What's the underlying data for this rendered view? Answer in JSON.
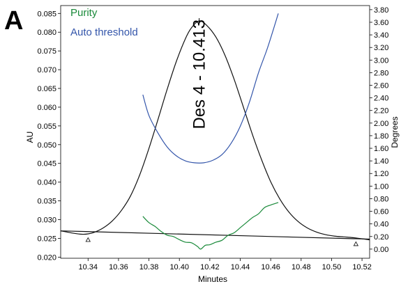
{
  "chart_data": {
    "type": "line",
    "panel_label": "A",
    "xlabel": "Minutes",
    "ylabel": "AU",
    "y2label": "Degrees",
    "xlim": [
      10.322,
      10.525
    ],
    "ylim": [
      0.0197,
      0.0871
    ],
    "y2lim": [
      -0.145,
      3.865
    ],
    "x_ticks": [
      "10.34",
      "10.36",
      "10.38",
      "10.40",
      "10.42",
      "10.44",
      "10.46",
      "10.48",
      "10.50",
      "10.52"
    ],
    "y_ticks": [
      "0.020",
      "0.025",
      "0.030",
      "0.035",
      "0.040",
      "0.045",
      "0.050",
      "0.055",
      "0.060",
      "0.065",
      "0.070",
      "0.075",
      "0.080",
      "0.085"
    ],
    "y2_ticks": [
      "0.00",
      "0.20",
      "0.40",
      "0.60",
      "0.80",
      "1.00",
      "1.20",
      "1.40",
      "1.60",
      "1.80",
      "2.00",
      "2.20",
      "2.40",
      "2.60",
      "2.80",
      "3.00",
      "3.20",
      "3.40",
      "3.60",
      "3.80"
    ],
    "legend": [
      {
        "name": "Purity",
        "color": "#1a8a3a"
      },
      {
        "name": "Auto threshold",
        "color": "#3355aa"
      }
    ],
    "legend_position": "top-left",
    "peak_annotation": {
      "text": "Des 4 - 10.413",
      "x": 10.413
    },
    "series": [
      {
        "key": "chromatogram",
        "axis": "left",
        "color": "#111111",
        "x": [
          10.322,
          10.33,
          10.336,
          10.34,
          10.344,
          10.35,
          10.356,
          10.362,
          10.368,
          10.374,
          10.38,
          10.386,
          10.392,
          10.398,
          10.404,
          10.408,
          10.413,
          10.418,
          10.424,
          10.43,
          10.436,
          10.442,
          10.448,
          10.454,
          10.46,
          10.466,
          10.472,
          10.478,
          10.484,
          10.49,
          10.496,
          10.502,
          10.508,
          10.514,
          10.52,
          10.525
        ],
        "y": [
          0.027,
          0.0264,
          0.0261,
          0.0262,
          0.0266,
          0.0278,
          0.0297,
          0.0325,
          0.0364,
          0.042,
          0.049,
          0.0568,
          0.0648,
          0.0722,
          0.0783,
          0.0812,
          0.083,
          0.0818,
          0.0787,
          0.0738,
          0.0674,
          0.0601,
          0.0527,
          0.046,
          0.0401,
          0.0355,
          0.032,
          0.0295,
          0.0278,
          0.0267,
          0.026,
          0.0256,
          0.0254,
          0.0252,
          0.0249,
          0.0246
        ]
      },
      {
        "key": "baseline",
        "axis": "left",
        "color": "#111111",
        "x": [
          10.322,
          10.525
        ],
        "y": [
          0.027,
          0.0248
        ]
      },
      {
        "name": "Auto threshold",
        "axis": "right",
        "color": "#3355aa",
        "x": [
          10.376,
          10.38,
          10.386,
          10.392,
          10.398,
          10.404,
          10.41,
          10.416,
          10.422,
          10.428,
          10.434,
          10.44,
          10.446,
          10.452,
          10.458,
          10.465
        ],
        "y": [
          2.45,
          2.12,
          1.84,
          1.62,
          1.48,
          1.4,
          1.37,
          1.37,
          1.41,
          1.5,
          1.68,
          1.95,
          2.33,
          2.8,
          3.2,
          3.74
        ]
      },
      {
        "name": "Purity",
        "axis": "right",
        "color": "#1a8a3a",
        "x": [
          10.376,
          10.38,
          10.384,
          10.388,
          10.392,
          10.396,
          10.4,
          10.404,
          10.408,
          10.412,
          10.414,
          10.417,
          10.42,
          10.424,
          10.428,
          10.432,
          10.436,
          10.44,
          10.444,
          10.448,
          10.452,
          10.456,
          10.46,
          10.465
        ],
        "y": [
          0.52,
          0.42,
          0.36,
          0.28,
          0.22,
          0.2,
          0.15,
          0.11,
          0.1,
          0.04,
          0.0,
          0.06,
          0.07,
          0.11,
          0.14,
          0.22,
          0.26,
          0.34,
          0.42,
          0.5,
          0.56,
          0.66,
          0.7,
          0.74
        ]
      }
    ],
    "markers": [
      {
        "x": 10.34,
        "y": 0.0261,
        "symbol": "triangle"
      },
      {
        "x": 10.516,
        "y": 0.025,
        "symbol": "triangle"
      }
    ]
  }
}
